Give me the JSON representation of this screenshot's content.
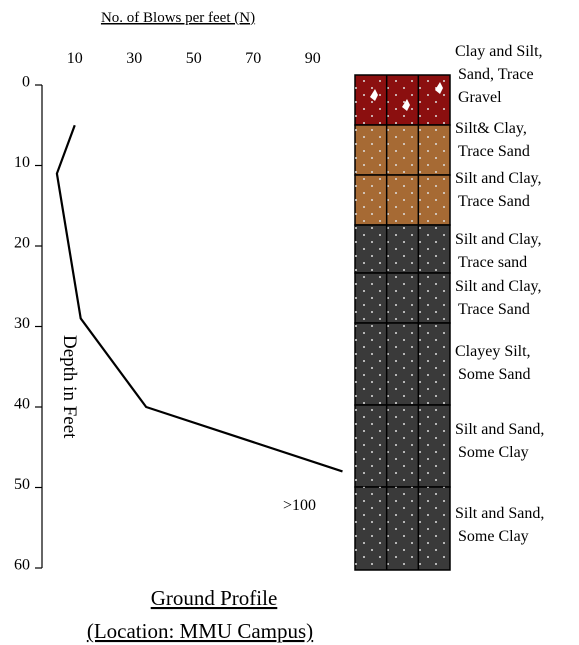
{
  "chart_data": {
    "type": "line",
    "title": "No. of Blows per feet (N)",
    "ylabel": "Depth in Feet",
    "annotation": ">100",
    "caption": [
      "Ground Profile",
      "(Location:  MMU Campus)"
    ],
    "xlim": [
      0,
      100
    ],
    "xticks": [
      10,
      30,
      50,
      70,
      90
    ],
    "ylim": [
      0,
      60
    ],
    "yticks": [
      0,
      10,
      20,
      30,
      40,
      50,
      60
    ],
    "y_inverted": true,
    "series": [
      {
        "x": [
          10,
          4,
          12,
          34,
          100
        ],
        "y": [
          5,
          11,
          29,
          40,
          48
        ],
        "color": "#000000"
      }
    ],
    "layers": [
      {
        "label": [
          "Clay and Silt,",
          "Sand, Trace",
          "Gravel"
        ],
        "color": "#8b0f0f"
      },
      {
        "label": [
          "Silt& Clay,",
          "Trace Sand"
        ],
        "color": "#a66a34"
      },
      {
        "label": [
          "Silt and Clay,",
          "Trace Sand"
        ],
        "color": "#a66a34"
      },
      {
        "label": [
          "Silt and Clay,",
          "Trace sand"
        ],
        "color": "#3a3a3a"
      },
      {
        "label": [
          "Silt and Clay,",
          "Trace Sand"
        ],
        "color": "#3a3a3a"
      },
      {
        "label": [
          "Clayey Silt,",
          "Some Sand"
        ],
        "color": "#3a3a3a"
      },
      {
        "label": [
          "Silt and Sand,",
          "Some Clay"
        ],
        "color": "#3a3a3a"
      },
      {
        "label": [
          "Silt and Sand,",
          "Some Clay"
        ],
        "color": "#3a3a3a"
      }
    ]
  }
}
